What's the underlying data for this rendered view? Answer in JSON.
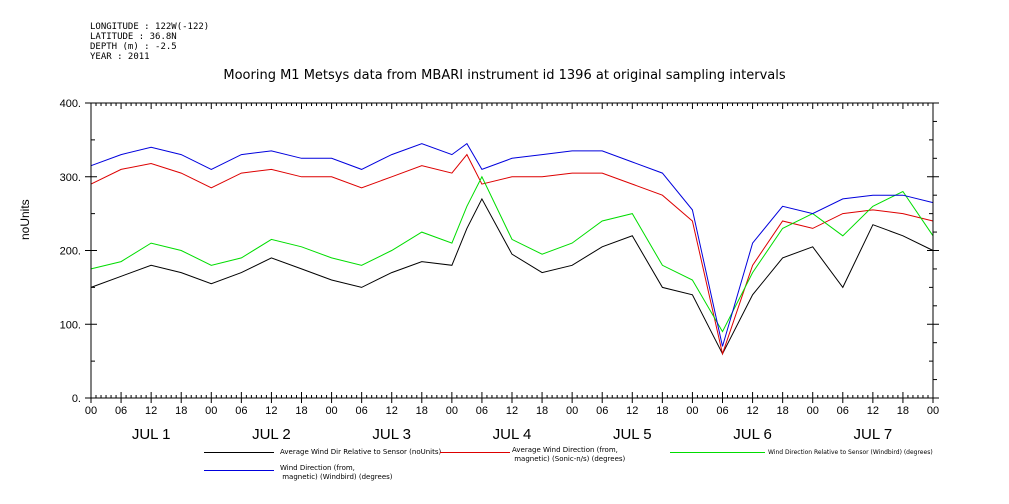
{
  "header": {
    "longitude": "LONGITUDE : 122W(-122)",
    "latitude": "LATITUDE : 36.8N",
    "depth": "DEPTH (m) : -2.5",
    "year": "YEAR : 2011"
  },
  "chart_data": {
    "type": "line",
    "title": "Mooring M1 Metsys data from MBARI instrument id 1396 at original sampling intervals",
    "ylabel": "noUnits",
    "xlabel": "",
    "ylim": [
      0,
      400
    ],
    "y_ticks": [
      "0.",
      "100.",
      "200.",
      "300.",
      "400."
    ],
    "x_range_hours": [
      0,
      168
    ],
    "x_tick_hour_labels": [
      "00",
      "06",
      "12",
      "18",
      "00",
      "06",
      "12",
      "18",
      "00",
      "06",
      "12",
      "18",
      "00",
      "06",
      "12",
      "18",
      "00",
      "06",
      "12",
      "18",
      "00",
      "06",
      "12",
      "18",
      "00",
      "06",
      "12",
      "18",
      "00"
    ],
    "day_labels": [
      "JUL  1",
      "JUL  2",
      "JUL  3",
      "JUL  4",
      "JUL  5",
      "JUL  6",
      "JUL  7"
    ],
    "grid": false,
    "x_hours": [
      0,
      6,
      12,
      18,
      24,
      30,
      36,
      42,
      48,
      54,
      60,
      66,
      72,
      75,
      78,
      84,
      90,
      96,
      102,
      108,
      114,
      120,
      126,
      132,
      138,
      144,
      150,
      156,
      162,
      168
    ],
    "series": [
      {
        "name": "Average Wind Dir Relative to Sensor (noUnits)",
        "color": "#000000",
        "values": [
          150,
          165,
          180,
          170,
          155,
          170,
          190,
          175,
          160,
          150,
          170,
          185,
          180,
          230,
          270,
          195,
          170,
          180,
          205,
          220,
          150,
          140,
          60,
          140,
          190,
          205,
          150,
          235,
          220,
          200
        ]
      },
      {
        "name": "Average Wind Direction (from,\n magnetic) (Sonic-n/s) (degrees)",
        "color": "#dd0000",
        "values": [
          290,
          310,
          318,
          305,
          285,
          305,
          310,
          300,
          300,
          285,
          300,
          315,
          305,
          330,
          290,
          300,
          300,
          305,
          305,
          290,
          275,
          240,
          60,
          180,
          240,
          230,
          250,
          255,
          250,
          240
        ]
      },
      {
        "name": "Wind Direction Relative to Sensor (Windbird) (degrees)",
        "color": "#00dd00",
        "values": [
          175,
          185,
          210,
          200,
          180,
          190,
          215,
          205,
          190,
          180,
          200,
          225,
          210,
          260,
          300,
          215,
          195,
          210,
          240,
          250,
          180,
          160,
          90,
          170,
          230,
          250,
          220,
          260,
          280,
          220
        ]
      },
      {
        "name": "Wind Direction (from,\n magnetic) (Windbird) (degrees)",
        "color": "#0000dd",
        "values": [
          315,
          330,
          340,
          330,
          310,
          330,
          335,
          325,
          325,
          310,
          330,
          345,
          330,
          345,
          310,
          325,
          330,
          335,
          335,
          320,
          305,
          255,
          70,
          210,
          260,
          250,
          270,
          275,
          275,
          265
        ]
      }
    ]
  },
  "legend": {
    "items": [
      {
        "label": "Average Wind Dir Relative to Sensor (noUnits)",
        "color": "#000000"
      },
      {
        "label": "Average Wind Direction (from,\n magnetic) (Sonic-n/s) (degrees)",
        "color": "#dd0000"
      },
      {
        "label": "Wind Direction Relative to Sensor (Windbird) (degrees)",
        "color": "#00dd00"
      },
      {
        "label": "Wind Direction (from,\n magnetic) (Windbird) (degrees)",
        "color": "#0000dd"
      }
    ]
  }
}
